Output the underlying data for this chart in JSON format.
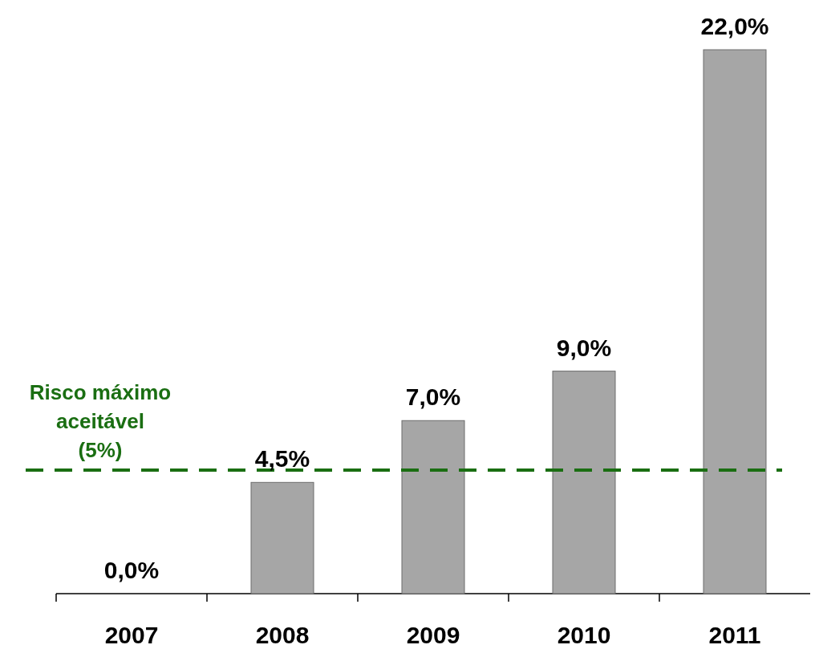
{
  "chart_data": {
    "type": "bar",
    "categories": [
      "2007",
      "2008",
      "2009",
      "2010",
      "2011"
    ],
    "values": [
      0,
      4.5,
      7,
      9,
      22
    ],
    "value_labels": [
      "0,0%",
      "4,5%",
      "7,0%",
      "9,0%",
      "22,0%"
    ],
    "color": "#a6a6a6",
    "ref_lines": [
      {
        "axis": "y",
        "value": 5,
        "label": "Risco máximo aceitável (5%)",
        "color": "#1a6e12",
        "line_style": "dashed"
      }
    ]
  }
}
